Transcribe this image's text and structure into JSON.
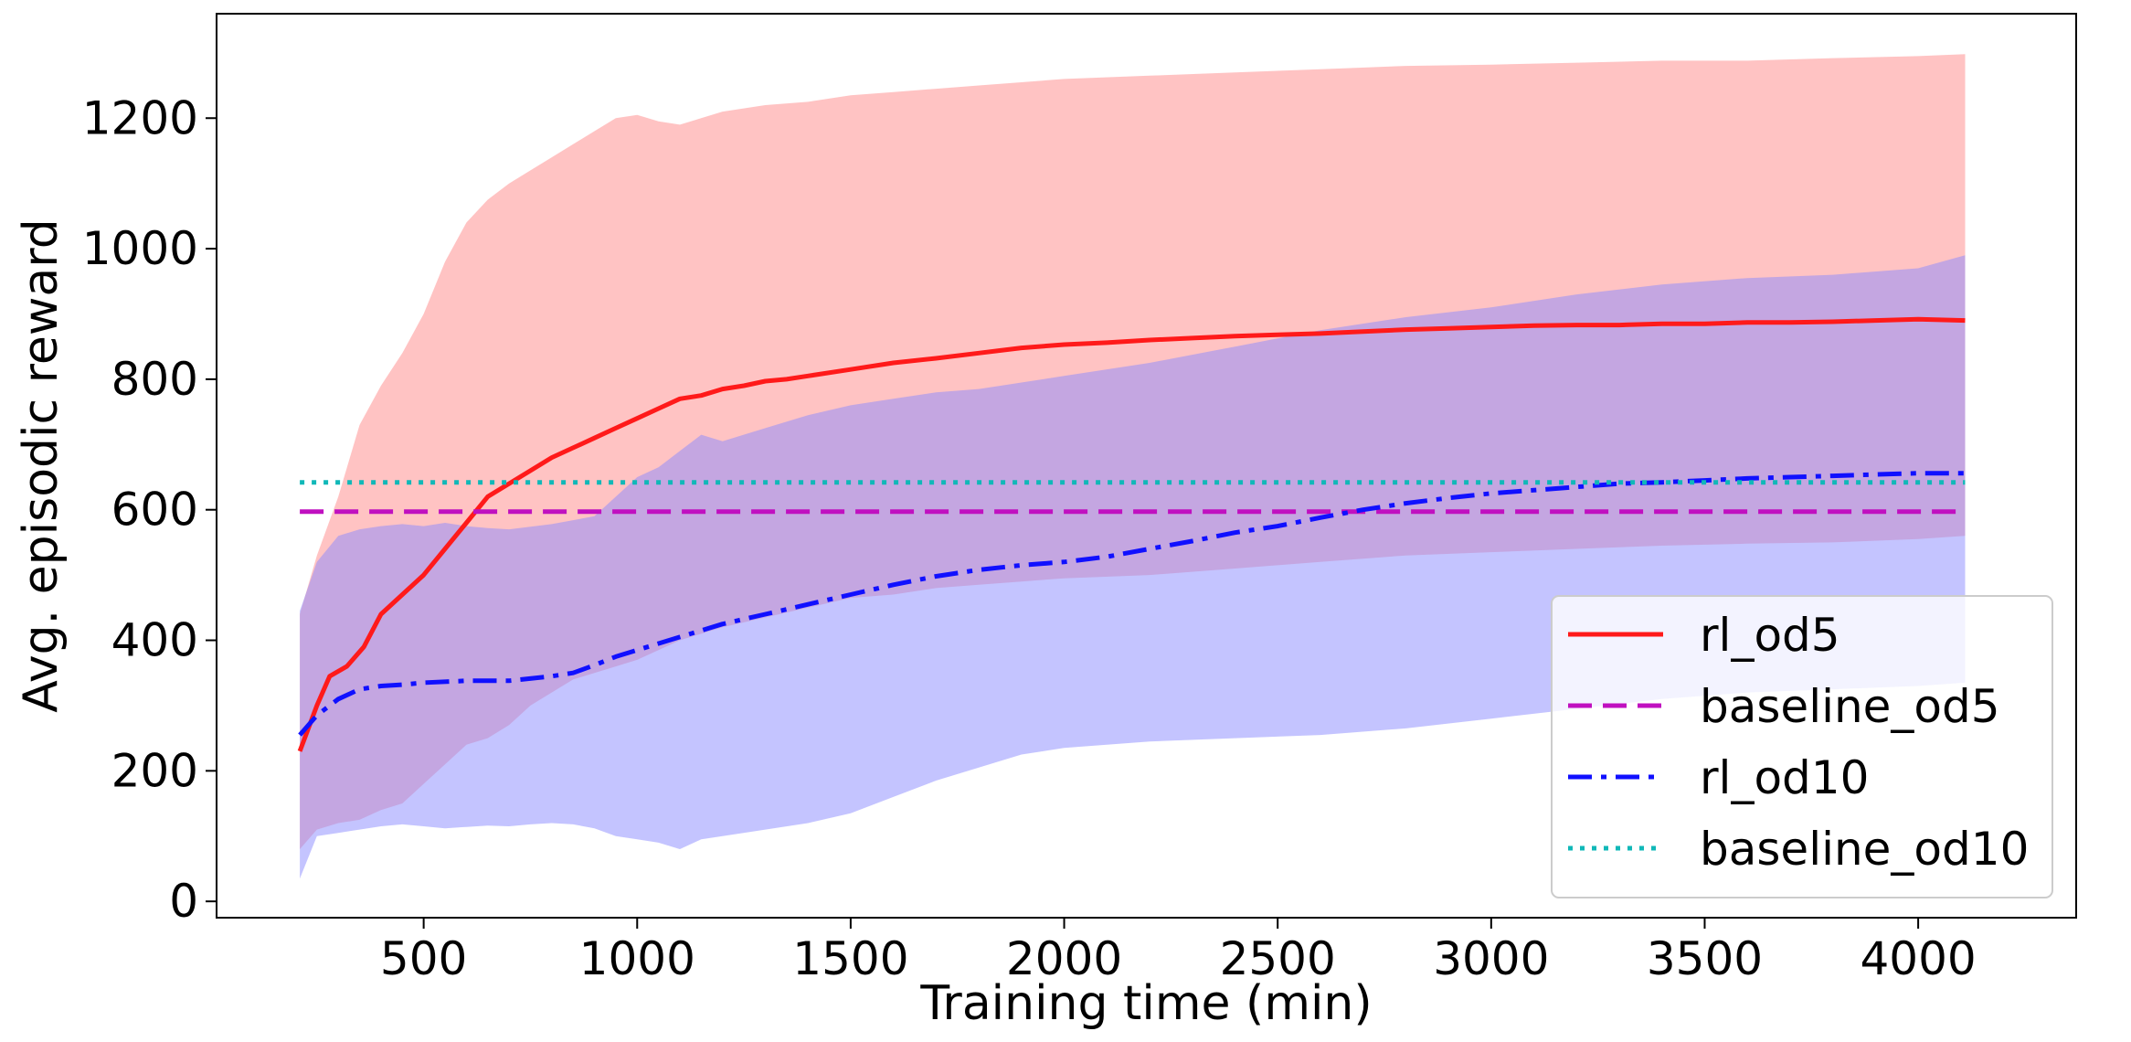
{
  "chart_data": {
    "type": "line",
    "xlabel": "Training time (min)",
    "ylabel": "Avg. episodic reward",
    "xlim": [
      15,
      4370
    ],
    "ylim": [
      -25,
      1360
    ],
    "xticks": [
      500,
      1000,
      1500,
      2000,
      2500,
      3000,
      3500,
      4000
    ],
    "yticks": [
      0,
      200,
      400,
      600,
      800,
      1000,
      1200
    ],
    "legend_position": "lower-right",
    "bands": [
      {
        "series": "rl_od5",
        "color": "#ff9e9e",
        "opacity": 0.62,
        "x": [
          210,
          250,
          300,
          350,
          400,
          450,
          500,
          550,
          600,
          650,
          700,
          750,
          800,
          850,
          900,
          950,
          1000,
          1050,
          1100,
          1200,
          1300,
          1400,
          1500,
          1600,
          1700,
          1800,
          1900,
          2000,
          2200,
          2400,
          2600,
          2800,
          3000,
          3200,
          3400,
          3600,
          3800,
          4000,
          4110
        ],
        "upper": [
          440,
          530,
          620,
          730,
          790,
          840,
          900,
          980,
          1040,
          1075,
          1100,
          1120,
          1140,
          1160,
          1180,
          1200,
          1205,
          1195,
          1190,
          1210,
          1220,
          1225,
          1235,
          1240,
          1245,
          1250,
          1255,
          1260,
          1265,
          1270,
          1275,
          1280,
          1282,
          1285,
          1288,
          1288,
          1292,
          1295,
          1298
        ],
        "lower": [
          80,
          110,
          120,
          125,
          140,
          150,
          180,
          210,
          240,
          250,
          270,
          300,
          320,
          340,
          350,
          360,
          370,
          385,
          400,
          420,
          435,
          450,
          465,
          470,
          480,
          485,
          490,
          495,
          500,
          510,
          520,
          530,
          535,
          540,
          545,
          548,
          550,
          555,
          560
        ]
      },
      {
        "series": "rl_od10",
        "color": "#8a8aff",
        "opacity": 0.5,
        "x": [
          210,
          250,
          300,
          350,
          400,
          450,
          500,
          550,
          600,
          650,
          700,
          750,
          800,
          850,
          900,
          950,
          1000,
          1050,
          1100,
          1150,
          1200,
          1300,
          1400,
          1500,
          1600,
          1700,
          1800,
          1900,
          2000,
          2200,
          2400,
          2600,
          2800,
          3000,
          3200,
          3400,
          3600,
          3800,
          4000,
          4110
        ],
        "upper": [
          445,
          520,
          560,
          570,
          575,
          578,
          575,
          580,
          575,
          572,
          570,
          574,
          578,
          584,
          590,
          620,
          650,
          665,
          690,
          715,
          705,
          725,
          745,
          760,
          770,
          780,
          785,
          795,
          805,
          825,
          850,
          875,
          895,
          910,
          930,
          945,
          955,
          960,
          970,
          990
        ],
        "lower": [
          35,
          100,
          105,
          110,
          115,
          118,
          115,
          112,
          114,
          116,
          115,
          118,
          120,
          118,
          112,
          100,
          95,
          90,
          80,
          95,
          100,
          110,
          120,
          135,
          160,
          185,
          205,
          225,
          235,
          245,
          250,
          255,
          265,
          280,
          295,
          310,
          320,
          325,
          330,
          335
        ]
      }
    ],
    "series": [
      {
        "name": "rl_od5",
        "color": "#ff1a1a",
        "dash": "solid",
        "x": [
          210,
          250,
          280,
          320,
          360,
          400,
          450,
          500,
          550,
          600,
          650,
          700,
          750,
          800,
          850,
          900,
          950,
          1000,
          1050,
          1100,
          1150,
          1200,
          1250,
          1300,
          1350,
          1400,
          1500,
          1600,
          1700,
          1800,
          1900,
          2000,
          2100,
          2200,
          2300,
          2400,
          2500,
          2600,
          2700,
          2800,
          2900,
          3000,
          3100,
          3200,
          3300,
          3400,
          3500,
          3600,
          3700,
          3800,
          3900,
          4000,
          4110
        ],
        "y": [
          230,
          300,
          345,
          360,
          390,
          440,
          470,
          500,
          540,
          580,
          620,
          640,
          660,
          680,
          695,
          710,
          725,
          740,
          755,
          770,
          775,
          785,
          790,
          797,
          800,
          805,
          815,
          825,
          832,
          840,
          848,
          853,
          856,
          860,
          863,
          866,
          868,
          870,
          873,
          876,
          878,
          880,
          882,
          883,
          883,
          885,
          885,
          887,
          887,
          888,
          890,
          892,
          890
        ]
      },
      {
        "name": "baseline_od5",
        "color": "#c010c0",
        "dash": "dashed",
        "x": [
          210,
          4110
        ],
        "y": [
          597,
          597
        ]
      },
      {
        "name": "rl_od10",
        "color": "#1010ff",
        "dash": "dashdot",
        "x": [
          210,
          250,
          300,
          350,
          400,
          450,
          500,
          600,
          700,
          800,
          850,
          900,
          950,
          1000,
          1100,
          1200,
          1300,
          1400,
          1500,
          1600,
          1700,
          1800,
          1900,
          2000,
          2100,
          2200,
          2300,
          2400,
          2500,
          2600,
          2700,
          2800,
          2900,
          3000,
          3100,
          3200,
          3300,
          3400,
          3500,
          3600,
          3700,
          3800,
          3900,
          4000,
          4110
        ],
        "y": [
          255,
          285,
          310,
          325,
          330,
          332,
          335,
          338,
          338,
          345,
          350,
          362,
          375,
          385,
          405,
          425,
          440,
          455,
          470,
          485,
          498,
          508,
          515,
          520,
          528,
          540,
          552,
          565,
          575,
          588,
          600,
          610,
          618,
          625,
          630,
          635,
          640,
          642,
          645,
          648,
          650,
          652,
          654,
          656,
          656
        ]
      },
      {
        "name": "baseline_od10",
        "color": "#10b8b8",
        "dash": "dotted",
        "x": [
          210,
          4110
        ],
        "y": [
          642,
          642
        ]
      }
    ]
  }
}
